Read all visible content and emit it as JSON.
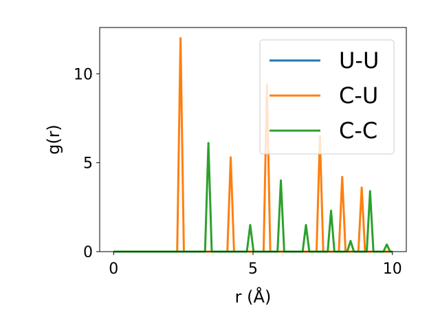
{
  "chart_data": {
    "type": "line",
    "xlabel": "r (Å)",
    "ylabel": "g(r)",
    "xlim": [
      -0.5,
      10.5
    ],
    "ylim": [
      0,
      12.6
    ],
    "xticks": [
      "0",
      "5",
      "10"
    ],
    "yticks": [
      "0",
      "5",
      "10"
    ],
    "grid": false,
    "legend_position": "top-right",
    "series": [
      {
        "name": "U-U",
        "color": "#1f77b4",
        "peaks": []
      },
      {
        "name": "C-U",
        "color": "#ff7f0e",
        "peaks": [
          [
            2.4,
            12.0
          ],
          [
            4.2,
            5.3
          ],
          [
            5.5,
            9.4
          ],
          [
            7.4,
            6.5
          ],
          [
            8.2,
            4.2
          ],
          [
            8.9,
            3.6
          ]
        ]
      },
      {
        "name": "C-C",
        "color": "#2ca02c",
        "peaks": [
          [
            3.4,
            6.1
          ],
          [
            4.9,
            1.5
          ],
          [
            6.0,
            4.0
          ],
          [
            6.9,
            1.5
          ],
          [
            7.8,
            2.3
          ],
          [
            8.5,
            0.6
          ],
          [
            9.2,
            3.4
          ],
          [
            9.8,
            0.4
          ]
        ]
      }
    ]
  }
}
